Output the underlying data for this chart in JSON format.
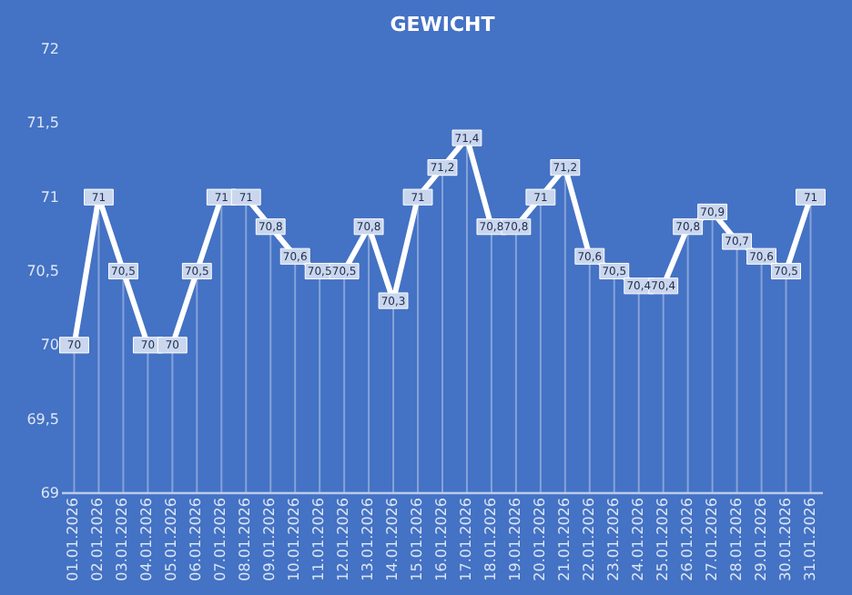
{
  "chart_data": {
    "type": "line",
    "title": "GEWICHT",
    "categories": [
      "01.01.2026",
      "02.01.2026",
      "03.01.2026",
      "04.01.2026",
      "05.01.2026",
      "06.01.2026",
      "07.01.2026",
      "08.01.2026",
      "09.01.2026",
      "10.01.2026",
      "11.01.2026",
      "12.01.2026",
      "13.01.2026",
      "14.01.2026",
      "15.01.2026",
      "16.01.2026",
      "17.01.2026",
      "18.01.2026",
      "19.01.2026",
      "20.01.2026",
      "21.01.2026",
      "22.01.2026",
      "23.01.2026",
      "24.01.2026",
      "25.01.2026",
      "26.01.2026",
      "27.01.2026",
      "28.01.2026",
      "29.01.2026",
      "30.01.2026",
      "31.01.2026"
    ],
    "series": [
      {
        "color": "#ffffff",
        "values": [
          70,
          71,
          70.5,
          70,
          70,
          70.5,
          71,
          71,
          70.8,
          70.6,
          70.5,
          70.5,
          70.8,
          70.3,
          71,
          71.2,
          71.4,
          70.8,
          70.8,
          71,
          71.2,
          70.6,
          70.5,
          70.4,
          70.4,
          70.8,
          70.9,
          70.7,
          70.6,
          70.5,
          71
        ],
        "value_labels": [
          "70",
          "71",
          "70,5",
          "70",
          "70",
          "70,5",
          "71",
          "71",
          "70,8",
          "70,6",
          "70,5",
          "70,5",
          "70,8",
          "70,3",
          "71",
          "71,2",
          "71,4",
          "70,8",
          "70,8",
          "71",
          "71,2",
          "70,6",
          "70,5",
          "70,4",
          "70,4",
          "70,8",
          "70,9",
          "70,7",
          "70,6",
          "70,5",
          "71"
        ]
      }
    ],
    "ylim": [
      69,
      72
    ],
    "yticks": [
      69,
      {
        "value": 69.5,
        "label": "69,5"
      },
      70,
      {
        "value": 70.5,
        "label": "70,5"
      },
      71,
      {
        "value": 71.5,
        "label": "71,5"
      },
      72
    ],
    "grid": "x",
    "marker": "square",
    "line_style": "solid"
  }
}
